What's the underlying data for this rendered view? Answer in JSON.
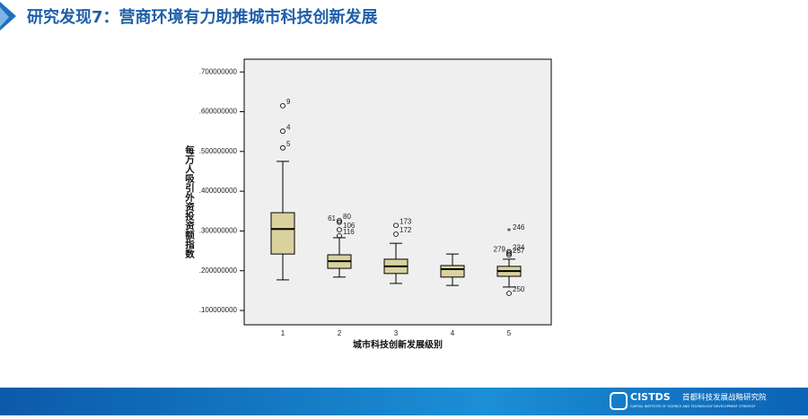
{
  "header": {
    "title": "研究发现7：营商环境有力助推城市科技创新发展"
  },
  "chart_data": {
    "type": "box",
    "y_label": "每万人吸引外资投资额指数",
    "x_label": "城市科技创新发展级别",
    "categories": [
      "1",
      "2",
      "3",
      "4",
      "5"
    ],
    "color": "#d9d29e",
    "background": "#efefef",
    "ylim": [
      0.064,
      0.732
    ],
    "yticks": [
      {
        "value": 0.1,
        "label": ".100000000"
      },
      {
        "value": 0.2,
        "label": ".200000000"
      },
      {
        "value": 0.3,
        "label": ".300000000"
      },
      {
        "value": 0.4,
        "label": ".400000000"
      },
      {
        "value": 0.5,
        "label": ".500000000"
      },
      {
        "value": 0.6,
        "label": ".600000000"
      },
      {
        "value": 0.7,
        "label": ".700000000"
      }
    ],
    "boxes": [
      {
        "min": 0.177,
        "q1": 0.242,
        "median": 0.305,
        "q3": 0.346,
        "max": 0.475,
        "outliers": [
          {
            "label": "9",
            "value": 0.615,
            "marker": "circle"
          },
          {
            "label": "4",
            "value": 0.551,
            "marker": "circle"
          },
          {
            "label": "5",
            "value": 0.509,
            "marker": "circle"
          }
        ]
      },
      {
        "min": 0.184,
        "q1": 0.206,
        "median": 0.224,
        "q3": 0.24,
        "max": 0.283,
        "outliers": [
          {
            "label": "80",
            "value": 0.326,
            "marker": "circle"
          },
          {
            "label": "61",
            "value": 0.322,
            "marker": "circle"
          },
          {
            "label": "106",
            "value": 0.303,
            "marker": "circle"
          },
          {
            "label": "116",
            "value": 0.288,
            "marker": "circle"
          }
        ]
      },
      {
        "min": 0.168,
        "q1": 0.193,
        "median": 0.211,
        "q3": 0.229,
        "max": 0.269,
        "outliers": [
          {
            "label": "173",
            "value": 0.314,
            "marker": "circle"
          },
          {
            "label": "172",
            "value": 0.292,
            "marker": "circle"
          }
        ]
      },
      {
        "min": 0.163,
        "q1": 0.184,
        "median": 0.204,
        "q3": 0.213,
        "max": 0.242,
        "outliers": []
      },
      {
        "min": 0.159,
        "q1": 0.186,
        "median": 0.199,
        "q3": 0.211,
        "max": 0.229,
        "outliers": [
          {
            "label": "246",
            "value": 0.299,
            "marker": "star"
          },
          {
            "label": "234",
            "value": 0.248,
            "marker": "circle"
          },
          {
            "label": "279",
            "value": 0.244,
            "marker": "circle"
          },
          {
            "label": "257",
            "value": 0.24,
            "marker": "circle"
          },
          {
            "label": "250",
            "value": 0.143,
            "marker": "circle"
          }
        ]
      }
    ]
  },
  "footer": {
    "logo": "CISTDS",
    "name": "首都科技发展战略研究院",
    "name_en": "CAPITAL INSTITUTE OF SCIENCE AND TECHNOLOGY DEVELOPMENT STRATEGY"
  }
}
